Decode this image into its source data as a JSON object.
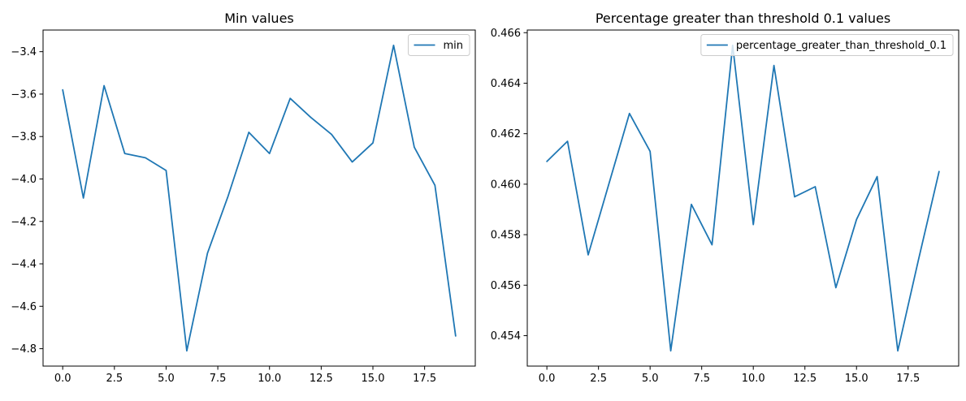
{
  "figure": {
    "background": "#ffffff",
    "accent_line_color": "#1f77b4",
    "spine_color": "#000000",
    "legend_border_color": "#cccccc",
    "legend_background": "rgba(255,255,255,0.8)"
  },
  "chart_data": [
    {
      "type": "line",
      "id": "min-values",
      "title": "Min values",
      "xlabel": "",
      "ylabel": "",
      "grid": false,
      "legend_position": "upper right",
      "legend_label": "min",
      "x": [
        0,
        1,
        2,
        3,
        4,
        5,
        6,
        7,
        8,
        9,
        10,
        11,
        12,
        13,
        14,
        15,
        16,
        17,
        18,
        19
      ],
      "series": [
        {
          "name": "min",
          "color": "#1f77b4",
          "values": [
            -3.58,
            -4.09,
            -3.56,
            -3.88,
            -3.9,
            -3.96,
            -4.81,
            -4.35,
            -4.08,
            -3.78,
            -3.88,
            -3.62,
            -3.71,
            -3.79,
            -3.92,
            -3.83,
            -3.37,
            -3.85,
            -4.03,
            -4.74
          ]
        }
      ],
      "xlim": [
        -0.95,
        19.95
      ],
      "ylim": [
        -4.882,
        -3.298
      ],
      "xticks": {
        "values": [
          0,
          2.5,
          5,
          7.5,
          10,
          12.5,
          15,
          17.5
        ],
        "labels": [
          "0.0",
          "2.5",
          "5.0",
          "7.5",
          "10.0",
          "12.5",
          "15.0",
          "17.5"
        ]
      },
      "yticks": {
        "values": [
          -4.8,
          -4.6,
          -4.4,
          -4.2,
          -4.0,
          -3.8,
          -3.6,
          -3.4
        ],
        "labels": [
          "−4.8",
          "−4.6",
          "−4.4",
          "−4.2",
          "−4.0",
          "−3.8",
          "−3.6",
          "−3.4"
        ]
      }
    },
    {
      "type": "line",
      "id": "percentage-greater-than-threshold",
      "title": "Percentage greater than threshold 0.1 values",
      "xlabel": "",
      "ylabel": "",
      "grid": false,
      "legend_position": "upper right",
      "legend_label": "percentage_greater_than_threshold_0.1",
      "x": [
        0,
        1,
        2,
        3,
        4,
        5,
        6,
        7,
        8,
        9,
        10,
        11,
        12,
        13,
        14,
        15,
        16,
        17,
        18,
        19
      ],
      "series": [
        {
          "name": "percentage_greater_than_threshold_0.1",
          "color": "#1f77b4",
          "values": [
            0.4609,
            0.4617,
            0.4572,
            0.46,
            0.4628,
            0.4613,
            0.4534,
            0.4592,
            0.4576,
            0.4655,
            0.4584,
            0.4647,
            0.4595,
            0.4599,
            0.4559,
            0.4586,
            0.4603,
            0.4534,
            0.457,
            0.4605
          ]
        }
      ],
      "xlim": [
        -0.95,
        19.95
      ],
      "ylim": [
        0.452795,
        0.466105
      ],
      "xticks": {
        "values": [
          0,
          2.5,
          5,
          7.5,
          10,
          12.5,
          15,
          17.5
        ],
        "labels": [
          "0.0",
          "2.5",
          "5.0",
          "7.5",
          "10.0",
          "12.5",
          "15.0",
          "17.5"
        ]
      },
      "yticks": {
        "values": [
          0.454,
          0.456,
          0.458,
          0.46,
          0.462,
          0.464,
          0.466
        ],
        "labels": [
          "0.454",
          "0.456",
          "0.458",
          "0.460",
          "0.462",
          "0.464",
          "0.466"
        ]
      }
    }
  ]
}
